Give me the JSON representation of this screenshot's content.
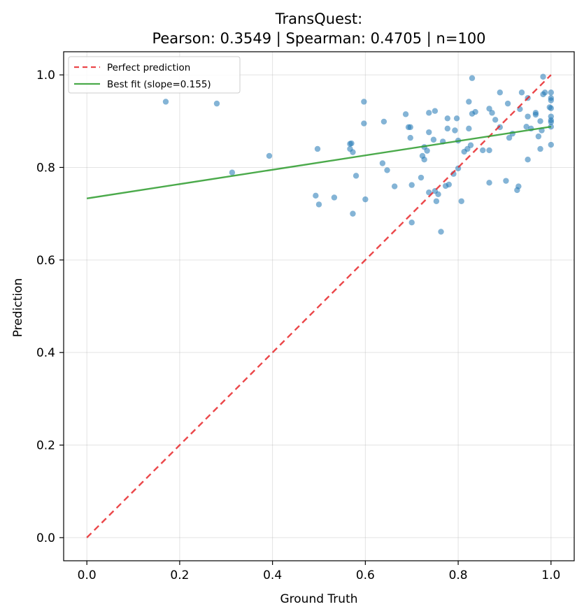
{
  "chart_data": {
    "type": "scatter",
    "title": "TransQuest:",
    "subtitle": "Pearson: 0.3549 | Spearman: 0.4705 | n=100",
    "xlabel": "Ground Truth",
    "ylabel": "Prediction",
    "xlim": [
      -0.05,
      1.05
    ],
    "ylim": [
      -0.05,
      1.05
    ],
    "xticks": [
      0.0,
      0.2,
      0.4,
      0.6,
      0.8,
      1.0
    ],
    "yticks": [
      0.0,
      0.2,
      0.4,
      0.6,
      0.8,
      1.0
    ],
    "xtick_labels": [
      "0.0",
      "0.2",
      "0.4",
      "0.6",
      "0.8",
      "1.0"
    ],
    "ytick_labels": [
      "0.0",
      "0.2",
      "0.4",
      "0.6",
      "0.8",
      "1.0"
    ],
    "grid": true,
    "legend_position": "upper-left",
    "colors": {
      "points": "#1f77b4",
      "perfect_line": "#e8272a",
      "fit_line": "#2c9b2c"
    },
    "lines": [
      {
        "name": "Perfect prediction",
        "style": "dashed",
        "x": [
          0.0,
          1.0
        ],
        "y": [
          0.0,
          1.0
        ]
      },
      {
        "name": "Best fit (slope=0.155)",
        "style": "solid",
        "x": [
          0.0,
          1.0
        ],
        "y": [
          0.733,
          0.888
        ]
      }
    ],
    "points": [
      [
        0.17,
        0.942
      ],
      [
        0.28,
        0.938
      ],
      [
        0.313,
        0.789
      ],
      [
        0.393,
        0.825
      ],
      [
        0.493,
        0.739
      ],
      [
        0.497,
        0.84
      ],
      [
        0.5,
        0.72
      ],
      [
        0.533,
        0.735
      ],
      [
        0.567,
        0.84
      ],
      [
        0.567,
        0.851
      ],
      [
        0.57,
        0.852
      ],
      [
        0.573,
        0.833
      ],
      [
        0.573,
        0.7
      ],
      [
        0.58,
        0.782
      ],
      [
        0.597,
        0.942
      ],
      [
        0.597,
        0.895
      ],
      [
        0.6,
        0.731
      ],
      [
        0.637,
        0.809
      ],
      [
        0.64,
        0.899
      ],
      [
        0.647,
        0.794
      ],
      [
        0.663,
        0.759
      ],
      [
        0.687,
        0.915
      ],
      [
        0.693,
        0.887
      ],
      [
        0.697,
        0.887
      ],
      [
        0.697,
        0.864
      ],
      [
        0.7,
        0.762
      ],
      [
        0.7,
        0.681
      ],
      [
        0.72,
        0.778
      ],
      [
        0.723,
        0.825
      ],
      [
        0.727,
        0.844
      ],
      [
        0.727,
        0.817
      ],
      [
        0.733,
        0.836
      ],
      [
        0.737,
        0.918
      ],
      [
        0.737,
        0.876
      ],
      [
        0.737,
        0.746
      ],
      [
        0.747,
        0.86
      ],
      [
        0.75,
        0.922
      ],
      [
        0.75,
        0.749
      ],
      [
        0.753,
        0.727
      ],
      [
        0.757,
        0.742
      ],
      [
        0.763,
        0.661
      ],
      [
        0.767,
        0.856
      ],
      [
        0.773,
        0.76
      ],
      [
        0.777,
        0.906
      ],
      [
        0.777,
        0.884
      ],
      [
        0.78,
        0.763
      ],
      [
        0.79,
        0.786
      ],
      [
        0.793,
        0.88
      ],
      [
        0.797,
        0.906
      ],
      [
        0.8,
        0.858
      ],
      [
        0.8,
        0.798
      ],
      [
        0.807,
        0.727
      ],
      [
        0.813,
        0.834
      ],
      [
        0.82,
        0.84
      ],
      [
        0.823,
        0.942
      ],
      [
        0.823,
        0.884
      ],
      [
        0.827,
        0.848
      ],
      [
        0.83,
        0.993
      ],
      [
        0.83,
        0.916
      ],
      [
        0.837,
        0.92
      ],
      [
        0.853,
        0.837
      ],
      [
        0.867,
        0.927
      ],
      [
        0.867,
        0.837
      ],
      [
        0.867,
        0.767
      ],
      [
        0.873,
        0.918
      ],
      [
        0.88,
        0.903
      ],
      [
        0.89,
        0.962
      ],
      [
        0.89,
        0.887
      ],
      [
        0.903,
        0.771
      ],
      [
        0.907,
        0.938
      ],
      [
        0.91,
        0.864
      ],
      [
        0.917,
        0.873
      ],
      [
        0.927,
        0.751
      ],
      [
        0.93,
        0.759
      ],
      [
        0.933,
        0.926
      ],
      [
        0.937,
        0.962
      ],
      [
        0.947,
        0.888
      ],
      [
        0.95,
        0.95
      ],
      [
        0.95,
        0.91
      ],
      [
        0.95,
        0.817
      ],
      [
        0.957,
        0.884
      ],
      [
        0.967,
        0.918
      ],
      [
        0.967,
        0.914
      ],
      [
        0.973,
        0.867
      ],
      [
        0.977,
        0.9
      ],
      [
        0.977,
        0.84
      ],
      [
        0.98,
        0.88
      ],
      [
        0.983,
        0.996
      ],
      [
        0.983,
        0.958
      ],
      [
        0.987,
        0.962
      ],
      [
        0.997,
        0.93
      ],
      [
        1.0,
        0.962
      ],
      [
        1.0,
        0.95
      ],
      [
        1.0,
        0.945
      ],
      [
        1.0,
        0.928
      ],
      [
        1.0,
        0.91
      ],
      [
        1.0,
        0.902
      ],
      [
        1.0,
        0.898
      ],
      [
        1.0,
        0.888
      ],
      [
        1.0,
        0.849
      ]
    ]
  }
}
